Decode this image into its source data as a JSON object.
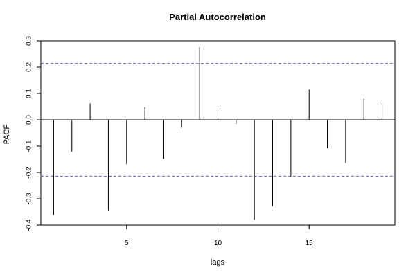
{
  "chart_data": {
    "type": "bar",
    "title": "Partial Autocorrelation",
    "xlabel": "lags",
    "ylabel": "PACF",
    "x": [
      1,
      2,
      3,
      4,
      5,
      6,
      7,
      8,
      9,
      10,
      11,
      12,
      13,
      14,
      15,
      16,
      17,
      18,
      19
    ],
    "values": [
      -0.362,
      -0.121,
      0.062,
      -0.344,
      -0.169,
      0.048,
      -0.148,
      -0.03,
      0.276,
      0.044,
      -0.016,
      -0.38,
      -0.328,
      -0.215,
      0.115,
      -0.108,
      -0.164,
      0.08,
      0.063
    ],
    "confidence_limit": 0.214,
    "confidence_color": "#6666cc",
    "xlim": [
      0.3,
      19.7
    ],
    "ylim": [
      -0.4,
      0.3
    ],
    "xticks": [
      5,
      10,
      15
    ],
    "yticks": [
      -0.4,
      -0.3,
      -0.2,
      -0.1,
      0.0,
      0.1,
      0.2,
      0.3
    ],
    "ytick_labels": [
      "-0.4",
      "-0.3",
      "-0.2",
      "-0.1",
      "0.0",
      "0.1",
      "0.2",
      "0.3"
    ],
    "grid": false
  }
}
